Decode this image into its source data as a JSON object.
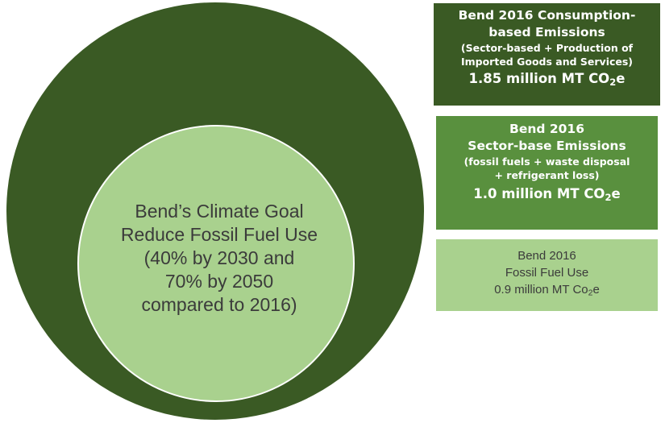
{
  "colors": {
    "outer_circle": "#3a5a24",
    "inner_circle": "#a9d18e",
    "consumption_box": "#3a5a24",
    "sector_box": "#59903e",
    "fossil_box": "#a9d18e"
  },
  "goal": {
    "line1": "Bend’s Climate Goal",
    "line2": "Reduce Fossil Fuel Use",
    "line3": "(40% by 2030 and",
    "line4": "70% by 2050",
    "line5": "compared to 2016)"
  },
  "consumption": {
    "title1": "Bend 2016 Consumption-",
    "title2": "based Emissions",
    "detail1": "(Sector-based + Production of",
    "detail2": "Imported Goods and Services)",
    "value_prefix": "1.85 million MT CO",
    "value_sub": "2",
    "value_suffix": "e"
  },
  "sector": {
    "title1": "Bend 2016",
    "title2": "Sector-base Emissions",
    "detail1": "(fossil fuels + waste disposal",
    "detail2": "+ refrigerant loss)",
    "value_prefix": "1.0 million MT CO",
    "value_sub": "2",
    "value_suffix": "e"
  },
  "fossil": {
    "line1": "Bend 2016",
    "line2": "Fossil Fuel Use",
    "value_prefix": "0.9 million MT Co",
    "value_sub": "2",
    "value_suffix": "e"
  }
}
